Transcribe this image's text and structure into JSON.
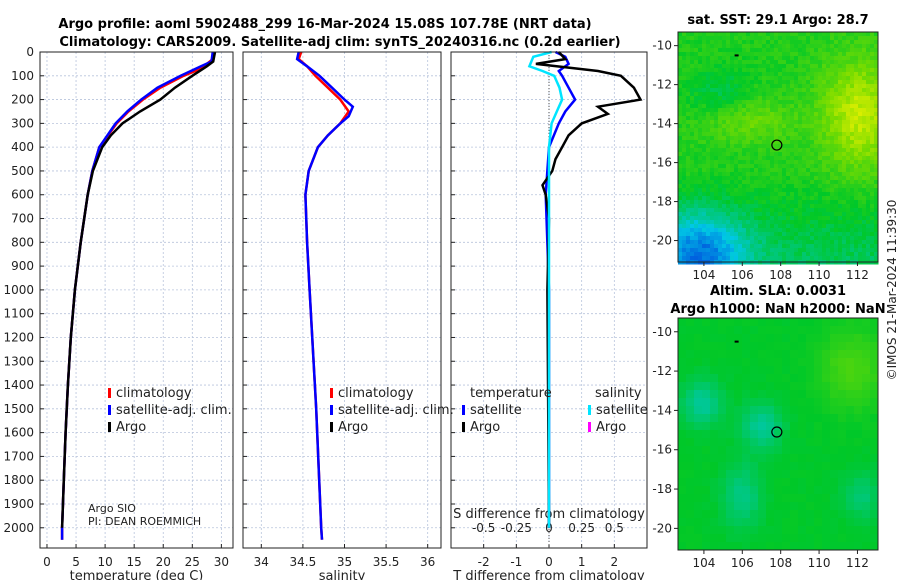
{
  "title_line1": "Argo profile: aoml 5902488_299 16-Mar-2024 15.08S 107.78E (NRT data)",
  "title_line2": "Climatology: CARS2009. Satellite-adj clim: synTS_20240316.nc (0.2d earlier)",
  "copyright": "©IMOS 21-Mar-2024 11:39:30",
  "colors": {
    "climatology": "#ff0000",
    "satellite": "#0000ff",
    "argo": "#000000",
    "sal_satellite": "#00e5ff",
    "sal_argo": "#ff00ff"
  },
  "chart_data": [
    {
      "type": "line",
      "name": "temperature",
      "xlabel": "temperature (deg C)",
      "xlim": [
        -1.2,
        32
      ],
      "ylim": [
        0,
        2085
      ],
      "yreversed": true,
      "grid": true,
      "xticks": [
        0,
        5,
        10,
        15,
        20,
        25,
        30
      ],
      "yticks": [
        0,
        100,
        200,
        300,
        400,
        500,
        600,
        700,
        800,
        900,
        1000,
        1100,
        1200,
        1300,
        1400,
        1500,
        1600,
        1700,
        1800,
        1900,
        2000
      ],
      "legend": {
        "placement": "bottom-right",
        "entries": [
          "climatology",
          "satellite-adj. clim.",
          "Argo"
        ]
      },
      "annotations": [
        "Argo SIO",
        "PI: DEAN ROEMMICH"
      ],
      "series": [
        {
          "name": "climatology",
          "color": "#ff0000",
          "depth": [
            0,
            30,
            60,
            80,
            100,
            150,
            200,
            250,
            300,
            400,
            500,
            600,
            800,
            1000,
            1200,
            1400,
            1600,
            1800,
            2000,
            2050
          ],
          "values": [
            28.8,
            28.5,
            27,
            25.5,
            23.5,
            19.5,
            16.5,
            14,
            12,
            9,
            7.8,
            7,
            5.8,
            4.8,
            4.1,
            3.6,
            3.2,
            2.9,
            2.6,
            2.6
          ]
        },
        {
          "name": "satellite-adj. clim.",
          "color": "#0000ff",
          "depth": [
            0,
            40,
            60,
            100,
            150,
            200,
            250,
            300,
            400,
            500,
            600,
            800,
            1000,
            1200,
            1400,
            1600,
            1800,
            2000,
            2050
          ],
          "values": [
            28.5,
            28.3,
            26.5,
            23,
            19,
            16.2,
            13.8,
            11.8,
            9,
            7.8,
            7,
            5.8,
            4.8,
            4.1,
            3.6,
            3.2,
            2.9,
            2.6,
            2.6
          ]
        },
        {
          "name": "Argo",
          "color": "#000000",
          "depth": [
            0,
            40,
            60,
            100,
            150,
            200,
            250,
            300,
            350,
            400,
            500,
            600,
            800,
            1000,
            1200,
            1400,
            1600,
            1800,
            2000
          ],
          "values": [
            28.9,
            28.6,
            27.5,
            25,
            22,
            19.5,
            16,
            13,
            11,
            9.5,
            7.9,
            7,
            5.8,
            4.8,
            4.1,
            3.6,
            3.2,
            2.9,
            2.6
          ]
        }
      ]
    },
    {
      "type": "line",
      "name": "salinity",
      "xlabel": "salinity",
      "xlim": [
        33.78,
        36.16
      ],
      "ylim": [
        0,
        2085
      ],
      "yreversed": true,
      "grid": true,
      "xticks": [
        34,
        34.5,
        35,
        35.5,
        36
      ],
      "legend": {
        "placement": "bottom-right",
        "entries": [
          "climatology",
          "satellite-adj. clim.",
          "Argo"
        ]
      },
      "series": [
        {
          "name": "climatology",
          "color": "#ff0000",
          "depth": [
            0,
            30,
            60,
            100,
            150,
            200,
            250,
            300,
            350,
            400,
            500,
            600,
            800,
            1000,
            1500,
            2000,
            2050
          ],
          "values": [
            34.48,
            34.45,
            34.55,
            34.65,
            34.8,
            34.95,
            35.05,
            34.95,
            34.8,
            34.68,
            34.57,
            34.53,
            34.55,
            34.58,
            34.66,
            34.72,
            34.73
          ]
        },
        {
          "name": "satellite-adj. clim.",
          "color": "#0000ff",
          "depth": [
            0,
            30,
            60,
            100,
            150,
            200,
            230,
            270,
            300,
            350,
            400,
            500,
            600,
            800,
            1000,
            1500,
            2000,
            2050
          ],
          "values": [
            34.45,
            34.43,
            34.55,
            34.7,
            34.85,
            35.0,
            35.1,
            35.05,
            34.95,
            34.8,
            34.68,
            34.57,
            34.53,
            34.55,
            34.58,
            34.66,
            34.72,
            34.73
          ]
        }
      ]
    },
    {
      "type": "line",
      "name": "difference",
      "xlabel": "T difference from climatology",
      "x2label": "S difference from climatology",
      "xlim": [
        -3,
        3
      ],
      "ylim": [
        0,
        2085
      ],
      "yreversed": true,
      "grid": true,
      "xticks": [
        -2,
        -1,
        0,
        1,
        2
      ],
      "x2ticks": [
        "-0.5",
        "-0.25",
        "0",
        "0.25",
        "0.5"
      ],
      "x2scale": 0.25,
      "legend": {
        "placement": "bottom",
        "temperature_header": "temperature",
        "salinity_header": "salinity",
        "entries": [
          "satellite",
          "Argo",
          "satellite",
          "Argo"
        ]
      },
      "series": [
        {
          "name": "T satellite",
          "color": "#0000ff",
          "depth": [
            0,
            20,
            50,
            80,
            100,
            150,
            200,
            250,
            300,
            400,
            600,
            1000,
            2000
          ],
          "values": [
            0.2,
            0.5,
            0.6,
            0.3,
            0.4,
            0.6,
            0.8,
            0.5,
            0.3,
            0.0,
            -0.1,
            0,
            0
          ]
        },
        {
          "name": "T Argo",
          "color": "#000000",
          "depth": [
            0,
            30,
            50,
            80,
            100,
            150,
            200,
            230,
            260,
            300,
            350,
            400,
            450,
            500,
            560,
            600,
            700,
            1000,
            2000
          ],
          "values": [
            0.3,
            0.5,
            -0.4,
            1.5,
            2.2,
            2.6,
            2.8,
            1.5,
            1.8,
            1.0,
            0.6,
            0.4,
            0.2,
            0.1,
            -0.2,
            -0.1,
            0,
            -0.05,
            0
          ]
        },
        {
          "name": "S satellite",
          "color": "#00e5ff",
          "depth": [
            0,
            20,
            60,
            80,
            100,
            150,
            200,
            250,
            300,
            400,
            2000
          ],
          "values": [
            0.02,
            -0.12,
            -0.15,
            -0.05,
            0.04,
            0.08,
            0.1,
            0.06,
            0.02,
            0,
            0
          ]
        }
      ]
    },
    {
      "type": "heatmap",
      "name": "sst-map",
      "title": "sat. SST: 29.1 Argo: 28.7",
      "xlim": [
        102.65,
        113.07
      ],
      "ylim": [
        -21.1,
        -9.3
      ],
      "xticks": [
        104,
        106,
        108,
        110,
        112
      ],
      "yticks": [
        -10,
        -12,
        -14,
        -16,
        -18,
        -20
      ],
      "marker": {
        "lon": 107.8,
        "lat": -15.1
      }
    },
    {
      "type": "heatmap",
      "name": "sla-map",
      "title": "Altim. SLA: 0.0031",
      "title2": "Argo h1000: NaN h2000: NaN",
      "xlim": [
        102.65,
        113.07
      ],
      "ylim": [
        -21.1,
        -9.3
      ],
      "xticks": [
        104,
        106,
        108,
        110,
        112
      ],
      "yticks": [
        -10,
        -12,
        -14,
        -16,
        -18,
        -20
      ],
      "marker": {
        "lon": 107.8,
        "lat": -15.1
      }
    }
  ]
}
